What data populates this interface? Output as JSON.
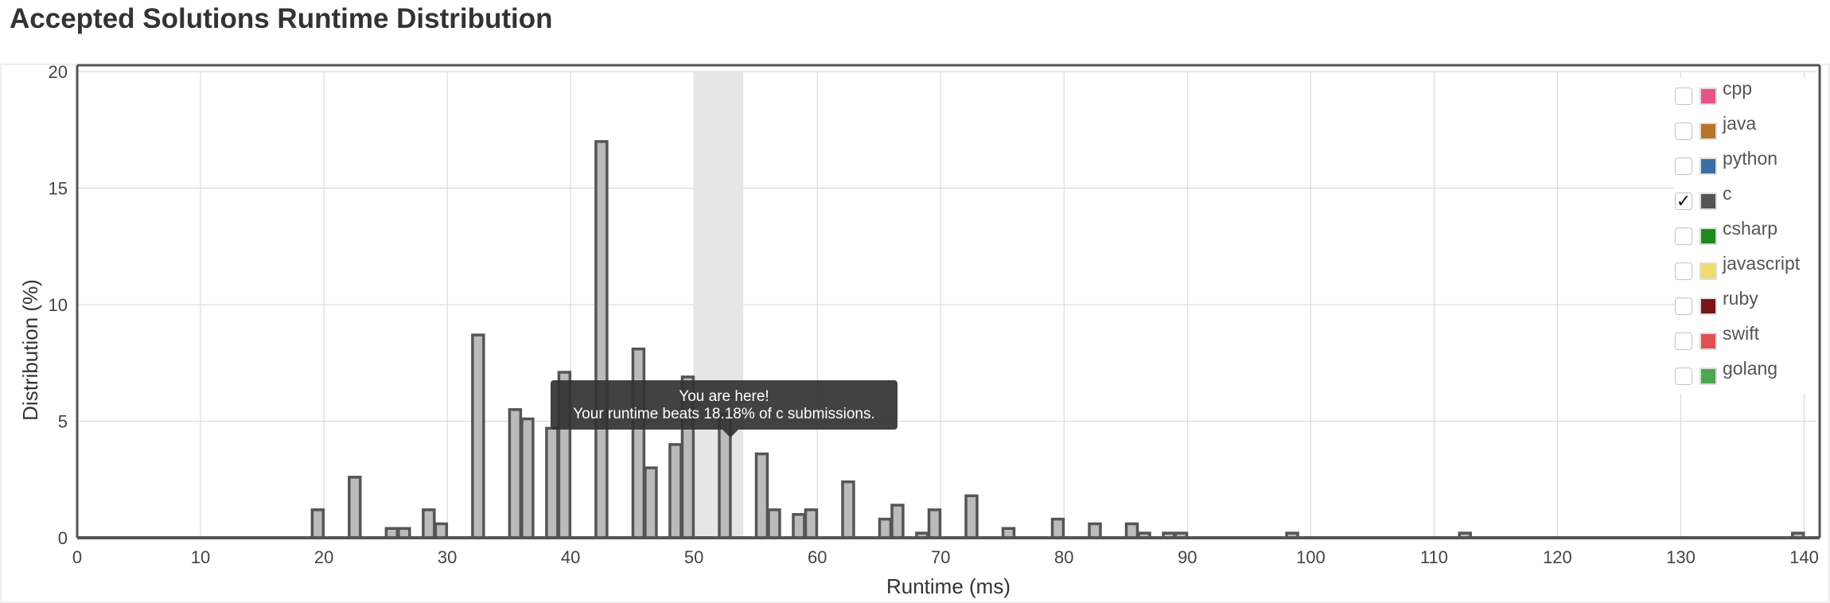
{
  "page": {
    "title": "Accepted Solutions Runtime Distribution"
  },
  "legend": {
    "items": [
      {
        "label": "cpp",
        "color": "#e8528a",
        "checked": false
      },
      {
        "label": "java",
        "color": "#b5762a",
        "checked": false
      },
      {
        "label": "python",
        "color": "#3a6ea5",
        "checked": false
      },
      {
        "label": "c",
        "color": "#555555",
        "checked": true,
        "check_mark": "✓"
      },
      {
        "label": "csharp",
        "color": "#1e8a1e",
        "checked": false
      },
      {
        "label": "javascript",
        "color": "#f0dc6e",
        "checked": false
      },
      {
        "label": "ruby",
        "color": "#7a1616",
        "checked": false
      },
      {
        "label": "swift",
        "color": "#e05050",
        "checked": false
      },
      {
        "label": "golang",
        "color": "#4ea654",
        "checked": false
      }
    ]
  },
  "tooltip": {
    "line1": "You are here!",
    "line2": "Your runtime beats 18.18% of c submissions."
  },
  "chart_data": {
    "type": "bar",
    "series": [
      {
        "name": "c",
        "x": [
          20,
          23,
          26,
          27,
          29,
          30,
          33,
          36,
          37,
          39,
          40,
          43,
          46,
          47,
          49,
          50,
          53,
          56,
          57,
          59,
          60,
          63,
          66,
          67,
          69,
          70,
          73,
          76,
          80,
          83,
          86,
          87,
          89,
          90,
          99,
          113,
          140
        ],
        "values": [
          1.2,
          2.6,
          0.4,
          0.4,
          1.2,
          0.6,
          8.7,
          5.5,
          5.1,
          4.7,
          7.1,
          17.0,
          8.1,
          3.0,
          4.0,
          6.9,
          5.3,
          3.6,
          1.2,
          1.0,
          1.2,
          2.4,
          0.8,
          1.4,
          0.2,
          1.2,
          1.8,
          0.4,
          0.8,
          0.6,
          0.6,
          0.2,
          0.2,
          0.2,
          0.2,
          0.2,
          0.2
        ],
        "color": "#bbbbbb",
        "stroke": "#555555"
      }
    ],
    "highlight_range": [
      50,
      54
    ],
    "xlabel": "Runtime (ms)",
    "ylabel": "Distribution (%)",
    "xlim": [
      0,
      141
    ],
    "ylim": [
      0,
      20
    ],
    "xticks": [
      0,
      10,
      20,
      30,
      40,
      50,
      60,
      70,
      80,
      90,
      100,
      110,
      120,
      130,
      140
    ],
    "yticks": [
      0,
      5,
      10,
      15,
      20
    ],
    "grid": true
  }
}
